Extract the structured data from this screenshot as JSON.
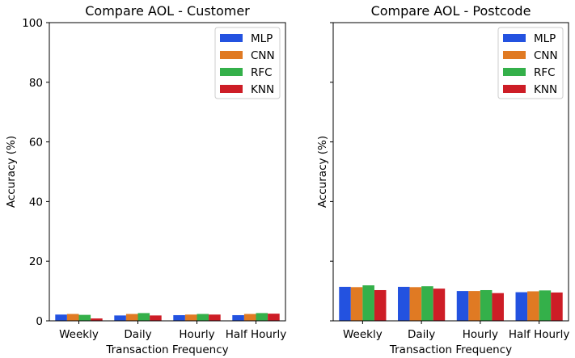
{
  "chart_data": [
    {
      "type": "bar",
      "title": "Compare AOL - Customer",
      "xlabel": "Transaction Frequency",
      "ylabel": "Accuracy (%)",
      "ylim": [
        0,
        100
      ],
      "yticks": [
        0,
        20,
        40,
        60,
        80,
        100
      ],
      "categories": [
        "Weekly",
        "Daily",
        "Hourly",
        "Half Hourly"
      ],
      "legend_position": "top-right",
      "series": [
        {
          "name": "MLP",
          "color": "#2352e0",
          "values": [
            2.1,
            1.8,
            1.9,
            1.9
          ]
        },
        {
          "name": "CNN",
          "color": "#e07a23",
          "values": [
            2.3,
            2.3,
            2.1,
            2.3
          ]
        },
        {
          "name": "RFC",
          "color": "#34b04a",
          "values": [
            2.0,
            2.6,
            2.3,
            2.6
          ]
        },
        {
          "name": "KNN",
          "color": "#cd1d26",
          "values": [
            0.8,
            1.8,
            2.1,
            2.4
          ]
        }
      ]
    },
    {
      "type": "bar",
      "title": "Compare AOL - Postcode",
      "xlabel": "Transaction Frequency",
      "ylabel": "Accuracy (%)",
      "ylim": [
        0,
        100
      ],
      "yticks": [
        0,
        20,
        40,
        60,
        80,
        100
      ],
      "categories": [
        "Weekly",
        "Daily",
        "Hourly",
        "Half Hourly"
      ],
      "legend_position": "top-right",
      "series": [
        {
          "name": "MLP",
          "color": "#2352e0",
          "values": [
            11.4,
            11.4,
            10.0,
            9.6
          ]
        },
        {
          "name": "CNN",
          "color": "#e07a23",
          "values": [
            11.3,
            11.3,
            10.0,
            9.9
          ]
        },
        {
          "name": "RFC",
          "color": "#34b04a",
          "values": [
            11.9,
            11.6,
            10.3,
            10.2
          ]
        },
        {
          "name": "KNN",
          "color": "#cd1d26",
          "values": [
            10.3,
            10.8,
            9.3,
            9.5
          ]
        }
      ]
    }
  ]
}
